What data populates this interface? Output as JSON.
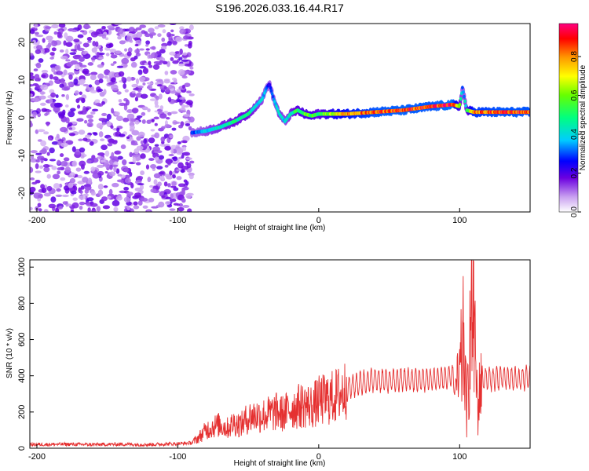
{
  "title": "S196.2026.033.16.44.R17",
  "chart_data": [
    {
      "type": "heatmap",
      "title": "S196.2026.033.16.44.R17",
      "xlabel": "Height of straight line (km)",
      "ylabel": "Frequency (Hz)",
      "xlim": [
        -205,
        150
      ],
      "ylim": [
        -25,
        25
      ],
      "xticks": [
        -200,
        -100,
        0,
        100
      ],
      "yticks": [
        -20,
        -10,
        0,
        10,
        20
      ],
      "colorbar": {
        "label": "Normalized spectral amplitude",
        "range": [
          0,
          0.97
        ],
        "ticks": [
          0.0,
          0.2,
          0.4,
          0.6,
          0.8
        ]
      },
      "ridge": {
        "x": [
          -90,
          -80,
          -70,
          -60,
          -50,
          -45,
          -40,
          -37,
          -35,
          -32,
          -28,
          -24,
          -20,
          -15,
          -10,
          -5,
          0,
          10,
          20,
          40,
          60,
          80,
          95,
          100,
          102,
          105,
          110,
          130,
          150
        ],
        "freq": [
          -4,
          -3.5,
          -2.5,
          -1,
          1,
          3,
          5,
          8,
          9,
          5,
          1,
          -1,
          1,
          2,
          1,
          0.5,
          1,
          1,
          1,
          1.5,
          2,
          3,
          3.5,
          3,
          8,
          2,
          1.5,
          1.5,
          1.5
        ],
        "amplitude": [
          0.3,
          0.4,
          0.45,
          0.5,
          0.5,
          0.45,
          0.4,
          0.35,
          0.25,
          0.35,
          0.45,
          0.4,
          0.45,
          0.55,
          0.6,
          0.6,
          0.55,
          0.7,
          0.8,
          0.9,
          0.92,
          0.9,
          0.95,
          0.6,
          0.3,
          0.5,
          0.85,
          0.9,
          0.9
        ]
      },
      "noise_region_x": [
        -205,
        -90
      ]
    },
    {
      "type": "line",
      "xlabel": "Height of straight line (km)",
      "ylabel": "SNR (10 * v/v)",
      "xlim": [
        -205,
        150
      ],
      "ylim": [
        0,
        1040
      ],
      "xticks": [
        -200,
        -100,
        0,
        100
      ],
      "yticks": [
        0,
        200,
        400,
        600,
        800,
        1000
      ],
      "series": [
        {
          "name": "SNR",
          "color": "#e53030",
          "x": [
            -205,
            -180,
            -160,
            -140,
            -120,
            -100,
            -90,
            -85,
            -80,
            -75,
            -70,
            -65,
            -60,
            -55,
            -50,
            -45,
            -40,
            -35,
            -30,
            -25,
            -20,
            -15,
            -10,
            -5,
            0,
            5,
            10,
            15,
            20,
            30,
            40,
            50,
            60,
            70,
            80,
            90,
            95,
            98,
            100,
            103,
            105,
            108,
            110,
            113,
            115,
            120,
            130,
            140,
            150
          ],
          "y": [
            20,
            22,
            20,
            22,
            20,
            25,
            30,
            60,
            100,
            120,
            130,
            110,
            140,
            130,
            170,
            180,
            180,
            190,
            200,
            190,
            220,
            230,
            240,
            230,
            260,
            270,
            280,
            300,
            330,
            360,
            380,
            370,
            380,
            375,
            380,
            385,
            400,
            300,
            380,
            600,
            180,
            700,
            650,
            200,
            390,
            380,
            390,
            380,
            390
          ]
        }
      ]
    }
  ]
}
